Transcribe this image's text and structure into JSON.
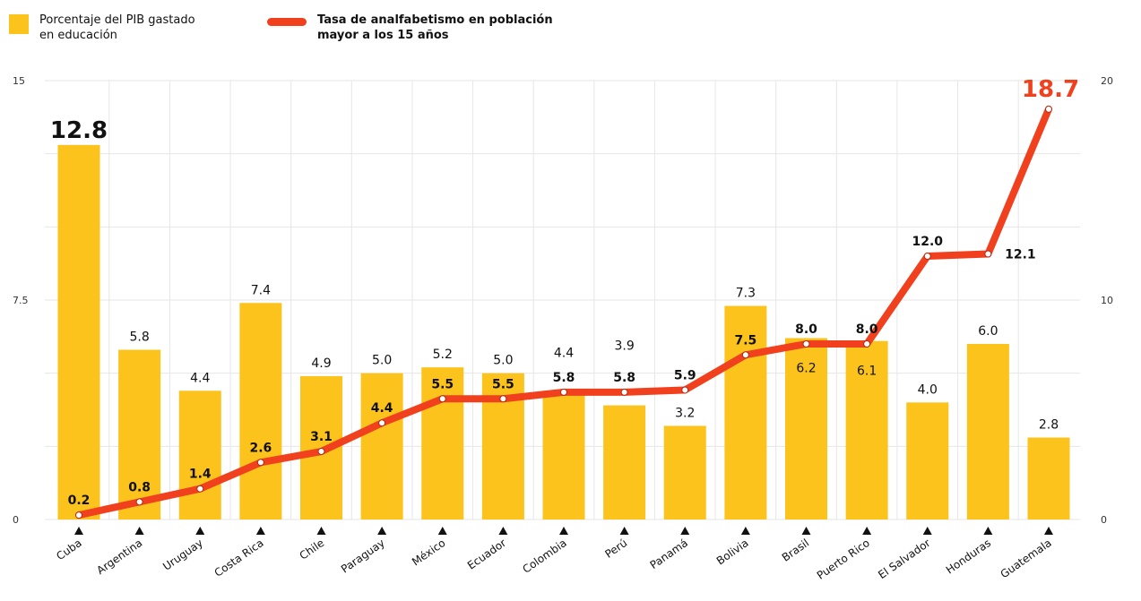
{
  "legend": {
    "bar_label": "Porcentaje del PIB gastado\nen educación",
    "line_label": "Tasa de analfabetismo en población\nmayor a los 15 años"
  },
  "colors": {
    "bar": "#FBC31C",
    "line": "#F0401E",
    "highlight": "#F0401E",
    "grid": "#e6e6e6",
    "text": "#111111"
  },
  "chart_data": {
    "type": "bar",
    "categories": [
      "Cuba",
      "Argentina",
      "Uruguay",
      "Costa Rica",
      "Chile",
      "Paraguay",
      "México",
      "Ecuador",
      "Colombia",
      "Perú",
      "Panamá",
      "Bolivia",
      "Brasil",
      "Puerto Rico",
      "El Salvador",
      "Honduras",
      "Guatemala"
    ],
    "series": [
      {
        "name": "Porcentaje del PIB gastado en educación",
        "type": "bar",
        "axis": "left",
        "values": [
          12.8,
          5.8,
          4.4,
          7.4,
          4.9,
          5.0,
          5.2,
          5.0,
          4.4,
          3.9,
          3.2,
          7.3,
          6.2,
          6.1,
          4.0,
          6.0,
          2.8
        ]
      },
      {
        "name": "Tasa de analfabetismo en población mayor a los 15 años",
        "type": "line",
        "axis": "right",
        "values": [
          0.2,
          0.8,
          1.4,
          2.6,
          3.1,
          4.4,
          5.5,
          5.5,
          5.8,
          5.8,
          5.9,
          7.5,
          8.0,
          8.0,
          12.0,
          12.1,
          18.7
        ]
      }
    ],
    "y_left": {
      "range": [
        0,
        15
      ],
      "ticks": [
        "0",
        "7.5",
        "15"
      ]
    },
    "y_right": {
      "range": [
        0,
        20
      ],
      "ticks": [
        "0",
        "10",
        "20"
      ]
    },
    "bar_value_labels": [
      "12.8",
      "5.8",
      "4.4",
      "7.4",
      "4.9",
      "5.0",
      "5.2",
      "5.0",
      "4.4",
      "3.9",
      "3.2",
      "7.3",
      "6.2",
      "6.1",
      "4.0",
      "6.0",
      "2.8"
    ],
    "line_value_labels": [
      "0.2",
      "0.8",
      "1.4",
      "2.6",
      "3.1",
      "4.4",
      "5.5",
      "5.5",
      "5.8",
      "5.8",
      "5.9",
      "7.5",
      "8.0",
      "8.0",
      "12.0",
      "12.1",
      "18.7"
    ],
    "grid": true,
    "legend_position": "top-left"
  }
}
